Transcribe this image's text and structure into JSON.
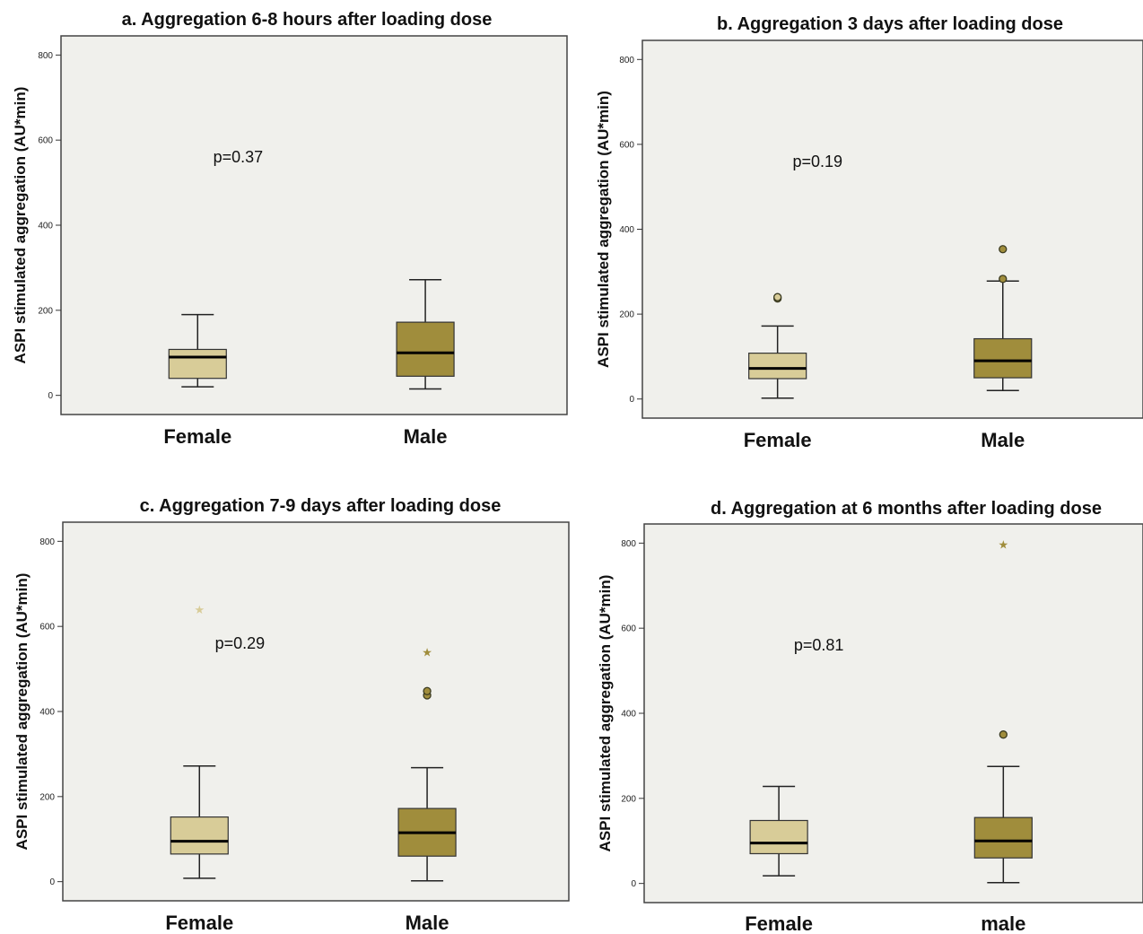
{
  "chart_data": [
    {
      "type": "boxplot",
      "title": "a. Aggregation 6-8 hours after loading dose",
      "ylabel": "ASPI stimulated aggregation (AU*min)",
      "xlabel": "",
      "ylim": [
        -45,
        845
      ],
      "yticks": [
        0,
        200,
        400,
        600,
        800
      ],
      "grid": false,
      "annotation": "p=0.37",
      "annotation_pos": {
        "category": 0.35,
        "y": 560
      },
      "categories": [
        "Female",
        "Male"
      ],
      "series": [
        {
          "name": "",
          "color": "#d8cc98",
          "boxes": [
            {
              "whisker_low": 20,
              "q1": 40,
              "median": 90,
              "q3": 108,
              "whisker_high": 190,
              "outliers": [],
              "extremes": []
            },
            {
              "whisker_low": 15,
              "q1": 45,
              "median": 100,
              "q3": 172,
              "whisker_high": 272,
              "outliers": [],
              "extremes": []
            }
          ]
        }
      ],
      "colors": [
        "#d8cc98",
        "#a08d3c"
      ]
    },
    {
      "type": "boxplot",
      "title": "b. Aggregation 3 days after loading dose",
      "ylabel": "ASPI stimulated aggregation (AU*min)",
      "xlabel": "",
      "ylim": [
        -45,
        845
      ],
      "yticks": [
        0,
        200,
        400,
        600,
        800
      ],
      "grid": false,
      "annotation": "p=0.19",
      "annotation_pos": {
        "category": 0.35,
        "y": 560
      },
      "categories": [
        "Female",
        "Male"
      ],
      "series": [
        {
          "name": "",
          "color": "#d8cc98",
          "boxes": [
            {
              "whisker_low": 2,
              "q1": 48,
              "median": 72,
              "q3": 108,
              "whisker_high": 172,
              "outliers": [
                237,
                240
              ],
              "extremes": []
            },
            {
              "whisker_low": 20,
              "q1": 50,
              "median": 90,
              "q3": 142,
              "whisker_high": 278,
              "outliers": [
                283,
                353
              ],
              "extremes": []
            }
          ]
        }
      ],
      "colors": [
        "#d8cc98",
        "#a08d3c"
      ]
    },
    {
      "type": "boxplot",
      "title": "c. Aggregation 7-9 days after loading dose",
      "ylabel": "ASPI stimulated aggregation (AU*min)",
      "xlabel": "",
      "ylim": [
        -45,
        845
      ],
      "yticks": [
        0,
        200,
        400,
        600,
        800
      ],
      "grid": false,
      "annotation": "p=0.29",
      "annotation_pos": {
        "category": 0.35,
        "y": 560
      },
      "categories": [
        "Female",
        "Male"
      ],
      "series": [
        {
          "name": "",
          "color": "#d8cc98",
          "boxes": [
            {
              "whisker_low": 8,
              "q1": 65,
              "median": 95,
              "q3": 152,
              "whisker_high": 272,
              "outliers": [],
              "extremes": [
                640
              ]
            },
            {
              "whisker_low": 2,
              "q1": 60,
              "median": 115,
              "q3": 172,
              "whisker_high": 268,
              "outliers": [
                438,
                448
              ],
              "extremes": [
                540
              ]
            }
          ]
        }
      ],
      "colors": [
        "#d8cc98",
        "#a08d3c"
      ]
    },
    {
      "type": "boxplot",
      "title": "d. Aggregation at 6 months after loading dose",
      "ylabel": "ASPI stimulated aggregation (AU*min)",
      "xlabel": "",
      "ylim": [
        -45,
        845
      ],
      "yticks": [
        0,
        200,
        400,
        600,
        800
      ],
      "grid": false,
      "annotation": "p=0.81",
      "annotation_pos": {
        "category": 0.35,
        "y": 560
      },
      "categories": [
        "Female",
        "male"
      ],
      "series": [
        {
          "name": "",
          "color": "#d8cc98",
          "boxes": [
            {
              "whisker_low": 18,
              "q1": 70,
              "median": 95,
              "q3": 148,
              "whisker_high": 228,
              "outliers": [],
              "extremes": []
            },
            {
              "whisker_low": 2,
              "q1": 60,
              "median": 100,
              "q3": 155,
              "whisker_high": 275,
              "outliers": [
                350
              ],
              "extremes": [
                798
              ]
            }
          ]
        }
      ],
      "colors": [
        "#d8cc98",
        "#a08d3c"
      ]
    }
  ]
}
